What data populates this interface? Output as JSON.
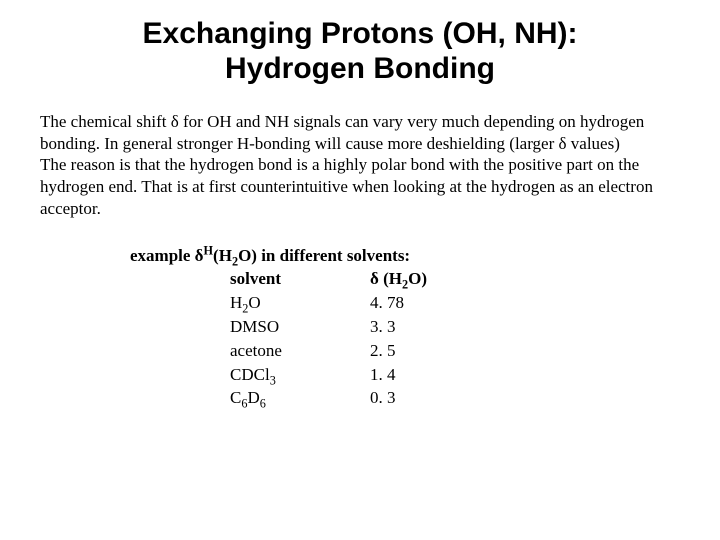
{
  "title_line1": "Exchanging Protons (OH, NH):",
  "title_line2": "Hydrogen Bonding",
  "paragraph": "The chemical shift δ for OH and NH signals can vary very much depending on hydrogen bonding.  In general stronger H-bonding will cause more deshielding (larger δ values)\nThe reason is that the hydrogen bond is a highly polar bond with the positive part on the hydrogen end.  That is at first counterintuitive when looking at the hydrogen as an electron acceptor.",
  "example_label_prefix": "example δ",
  "example_label_sup": "H",
  "example_label_mid": "(H",
  "example_label_sub": "2",
  "example_label_suffix": "O) in different solvents:",
  "table": {
    "header_solvent": "solvent",
    "header_value_prefix": "δ (H",
    "header_value_sub": "2",
    "header_value_suffix": "O)",
    "rows": [
      {
        "solvent_html": "H<sub>2</sub>O",
        "value": "4. 78"
      },
      {
        "solvent_html": "DMSO",
        "value": "3. 3"
      },
      {
        "solvent_html": "acetone",
        "value": "2. 5"
      },
      {
        "solvent_html": "CDCl<sub>3</sub>",
        "value": "1. 4"
      },
      {
        "solvent_html": "C<sub>6</sub>D<sub>6</sub>",
        "value": "0. 3"
      }
    ]
  },
  "colors": {
    "background": "#ffffff",
    "text": "#000000"
  },
  "fonts": {
    "title_family": "Arial",
    "title_size_pt": 22,
    "body_family": "Times New Roman",
    "body_size_pt": 13
  }
}
